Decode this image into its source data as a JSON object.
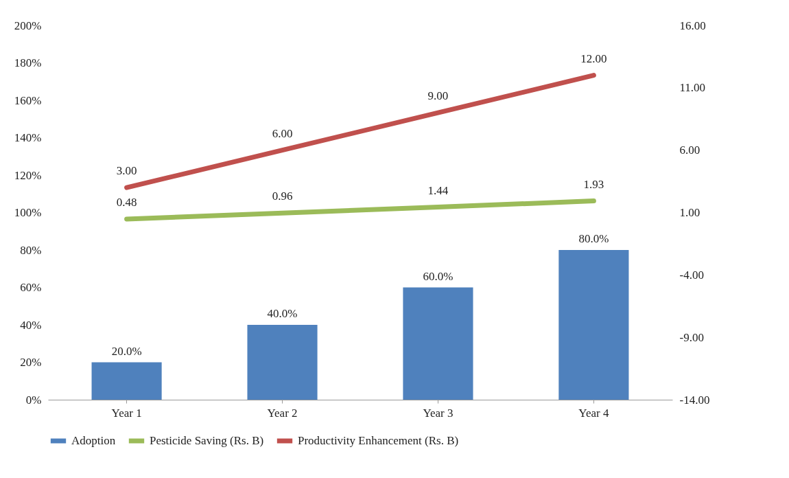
{
  "chart_data": {
    "type": "bar",
    "categories": [
      "Year 1",
      "Year 2",
      "Year 3",
      "Year 4"
    ],
    "series": [
      {
        "name": "Adoption",
        "color": "#4f81bd",
        "values": [
          20,
          40,
          60,
          80
        ],
        "value_labels": [
          "20.0%",
          "40.0%",
          "60.0%",
          "80.0%"
        ]
      },
      {
        "name": "Pesticide Saving (Rs. B)",
        "type": "line",
        "axis": "y2",
        "color": "#9bbb59",
        "values": [
          0.48,
          0.96,
          1.44,
          1.93
        ],
        "value_labels": [
          "0.48",
          "0.96",
          "1.44",
          "1.93"
        ]
      },
      {
        "name": "Productivity Enhancement (Rs. B)",
        "type": "line",
        "axis": "y2",
        "color": "#c0504d",
        "values": [
          3,
          6,
          9,
          12
        ],
        "value_labels": [
          "3.00",
          "6.00",
          "9.00",
          "12.00"
        ]
      }
    ],
    "ylim": [
      0,
      200
    ],
    "yticks": [
      {
        "value": 0,
        "label": "0%"
      },
      {
        "value": 20,
        "label": "20%"
      },
      {
        "value": 40,
        "label": "40%"
      },
      {
        "value": 60,
        "label": "60%"
      },
      {
        "value": 80,
        "label": "80%"
      },
      {
        "value": 100,
        "label": "100%"
      },
      {
        "value": 120,
        "label": "120%"
      },
      {
        "value": 140,
        "label": "140%"
      },
      {
        "value": 160,
        "label": "160%"
      },
      {
        "value": 180,
        "label": "180%"
      },
      {
        "value": 200,
        "label": "200%"
      }
    ],
    "y2lim": [
      -14,
      16
    ],
    "y2ticks": [
      {
        "value": -14,
        "label": "-14.00"
      },
      {
        "value": -9,
        "label": "-9.00"
      },
      {
        "value": -4,
        "label": "-4.00"
      },
      {
        "value": 1,
        "label": "1.00"
      },
      {
        "value": 6,
        "label": "6.00"
      },
      {
        "value": 11,
        "label": "11.00"
      },
      {
        "value": 16,
        "label": "16.00"
      }
    ],
    "legend": "bottom"
  }
}
